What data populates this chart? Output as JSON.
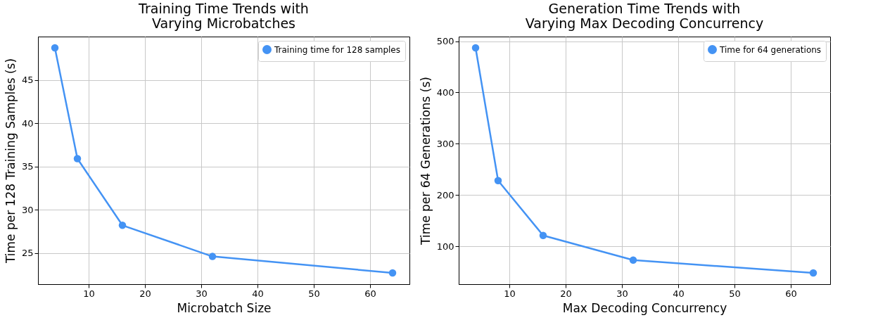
{
  "chart_data": [
    {
      "type": "line",
      "title": "Training Time Trends with\nVarying Microbatches",
      "xlabel": "Microbatch Size",
      "ylabel": "Time per 128 Training Samples (s)",
      "x": [
        4,
        8,
        16,
        32,
        64
      ],
      "series": [
        {
          "name": "Training time for 128 samples",
          "color": "#4493f4",
          "values": [
            48.7,
            35.9,
            28.2,
            24.6,
            22.7
          ]
        }
      ],
      "xlim": [
        1,
        67
      ],
      "xticks": [
        10,
        20,
        30,
        40,
        50,
        60
      ],
      "ylim": [
        21.4,
        50.0
      ],
      "yticks": [
        25,
        30,
        35,
        40,
        45
      ],
      "grid": true,
      "legend": "top right",
      "marker": "circle",
      "line_style": "solid"
    },
    {
      "type": "line",
      "title": "Generation Time Trends with\nVarying Max Decoding Concurrency",
      "xlabel": "Max Decoding Concurrency",
      "ylabel": "Time per 64 Generations (s)",
      "x": [
        4,
        8,
        16,
        32,
        64
      ],
      "series": [
        {
          "name": "Time for 64 generations",
          "color": "#4493f4",
          "values": [
            487,
            228,
            121,
            73,
            48
          ]
        }
      ],
      "xlim": [
        1,
        67
      ],
      "xticks": [
        10,
        20,
        30,
        40,
        50,
        60
      ],
      "ylim": [
        26,
        509
      ],
      "yticks": [
        100,
        200,
        300,
        400,
        500
      ],
      "grid": true,
      "legend": "top right",
      "marker": "circle",
      "line_style": "solid"
    }
  ]
}
